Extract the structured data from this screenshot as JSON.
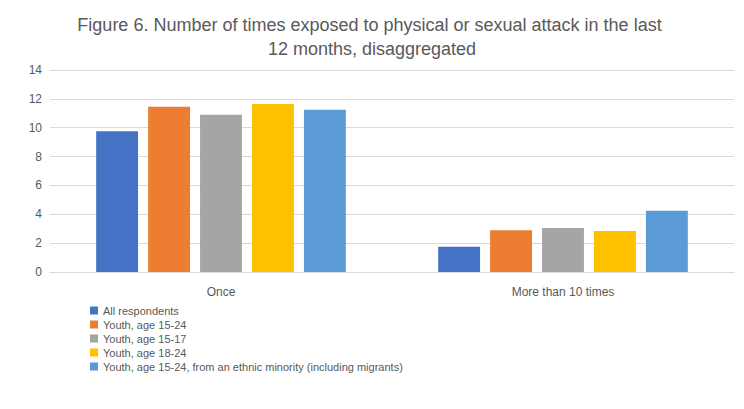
{
  "chart_data": {
    "type": "bar",
    "title": "Figure 6. Number of times exposed to physical or sexual attack in the last 12 months, disaggregated",
    "categories": [
      "Once",
      "More than 10 times"
    ],
    "series": [
      {
        "name": "All respondents",
        "color": "#4472c4",
        "values": [
          9.75,
          1.75
        ]
      },
      {
        "name": "Youth, age 15-24",
        "color": "#ed7d31",
        "values": [
          11.45,
          2.9
        ]
      },
      {
        "name": "Youth, age 15-17",
        "color": "#a5a5a5",
        "values": [
          10.9,
          3.05
        ]
      },
      {
        "name": "Youth, age 18-24",
        "color": "#ffc000",
        "values": [
          11.65,
          2.85
        ]
      },
      {
        "name": "Youth, age 15-24, from an ethnic minority (including migrants)",
        "color": "#5b9bd5",
        "values": [
          11.25,
          4.25
        ]
      }
    ],
    "ylim": [
      0,
      14
    ],
    "yticks": [
      0,
      2,
      4,
      6,
      8,
      10,
      12,
      14
    ],
    "grid": true,
    "legend": "bottom"
  }
}
